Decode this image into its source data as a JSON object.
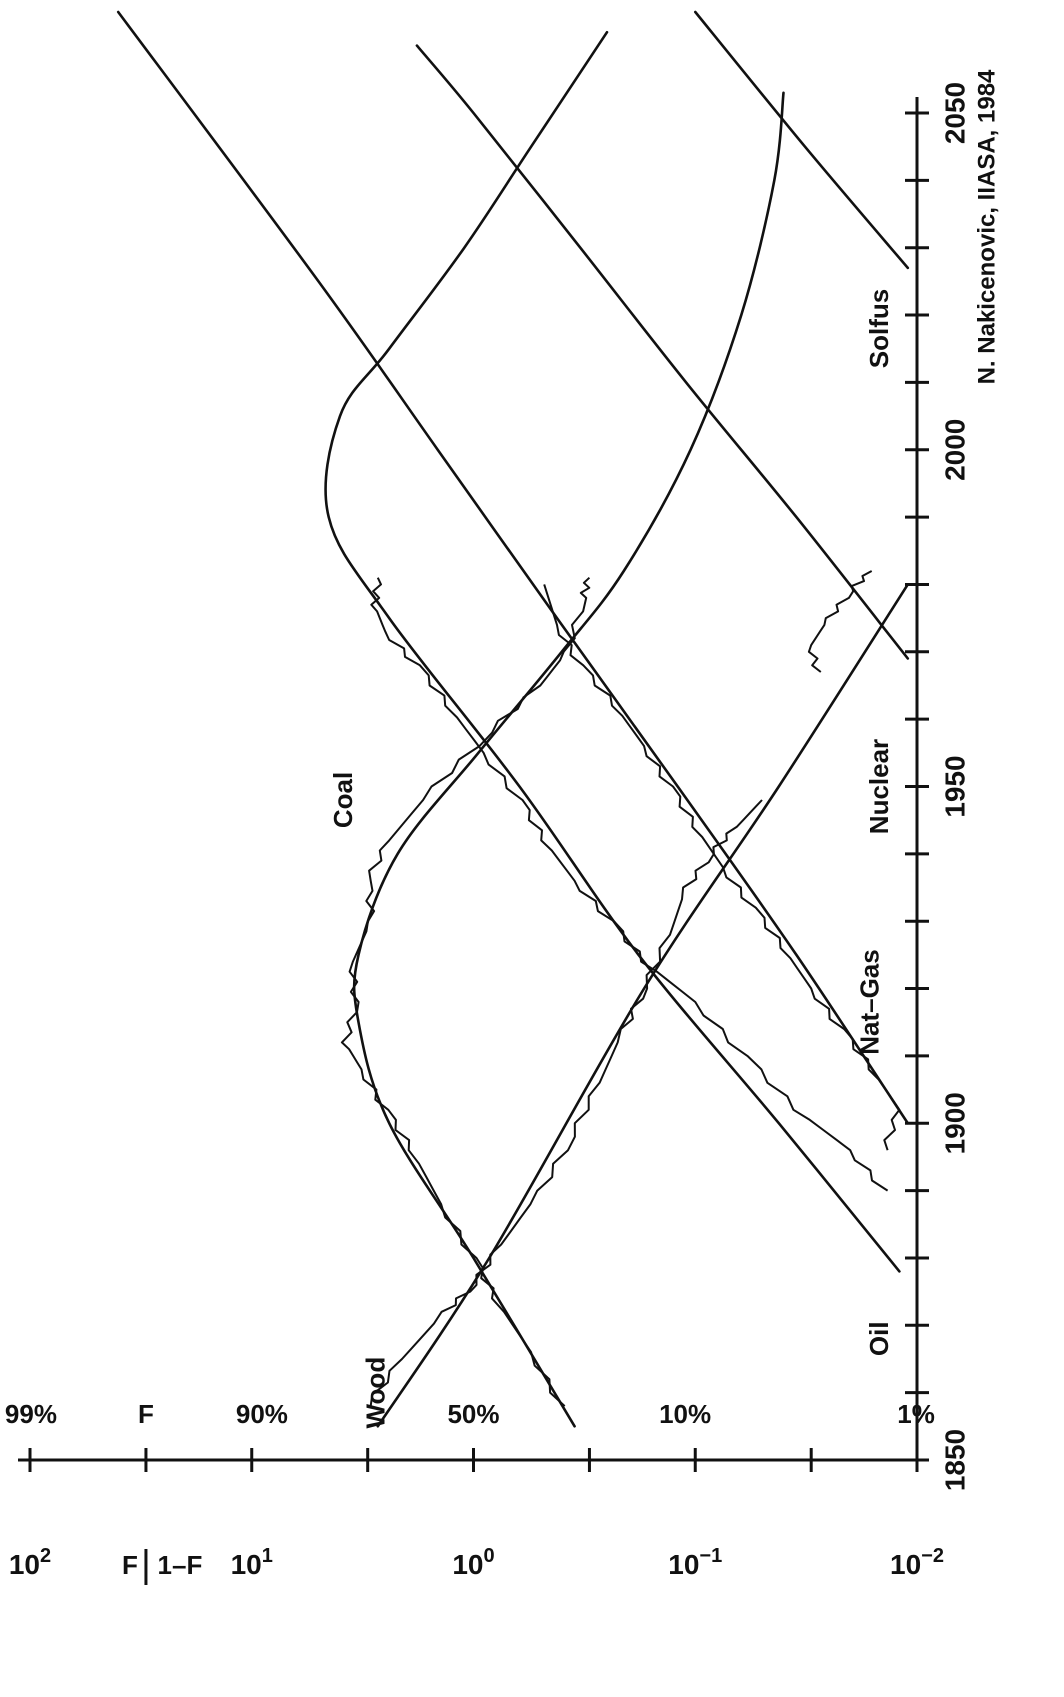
{
  "chart_data": {
    "type": "line",
    "title": "",
    "attribution": "N. Nakicenovic, IIASA, 1984",
    "xlabel": "",
    "ylabel": "F / (1-F)",
    "ylabel_numerator": "F",
    "ylabel_denominator": "1–F",
    "right_axis_label": "F",
    "yscale": "log",
    "xlim": [
      1850,
      2050
    ],
    "ylim": [
      0.01,
      100
    ],
    "x_tick_labels": [
      {
        "x": 1850,
        "label": "1850"
      },
      {
        "x": 1900,
        "label": "1900"
      },
      {
        "x": 1950,
        "label": "1950"
      },
      {
        "x": 2000,
        "label": "2000"
      },
      {
        "x": 2050,
        "label": "2050"
      }
    ],
    "x_minor_ticks": [
      1860,
      1870,
      1880,
      1890,
      1910,
      1920,
      1930,
      1940,
      1960,
      1970,
      1980,
      1990,
      2010,
      2020,
      2030,
      2040
    ],
    "y_tick_labels": [
      {
        "y": 100,
        "base": "10",
        "exp": "2"
      },
      {
        "y": 10,
        "base": "10",
        "exp": "1"
      },
      {
        "y": 1,
        "base": "10",
        "exp": "0"
      },
      {
        "y": 0.1,
        "base": "10",
        "exp": "−1"
      },
      {
        "y": 0.01,
        "base": "10",
        "exp": "−2"
      }
    ],
    "y_minor_ticks": [
      30,
      3,
      0.3,
      0.03
    ],
    "percent_labels": [
      {
        "y": 99,
        "label": "99%"
      },
      {
        "y": 9,
        "label": "90%"
      },
      {
        "y": 1,
        "label": "50%"
      },
      {
        "y": 0.1111,
        "label": "10%"
      },
      {
        "y": 0.0101,
        "label": "1%"
      }
    ],
    "series": [
      {
        "name": "Wood",
        "fitted": [
          [
            1855,
            2.7
          ],
          [
            1880,
            0.85
          ],
          [
            1920,
            0.17
          ],
          [
            1950,
            0.042
          ],
          [
            1980,
            0.011
          ]
        ],
        "observed": [
          [
            1858,
            3.0
          ],
          [
            1865,
            2.1
          ],
          [
            1872,
            1.35
          ],
          [
            1876,
            1.0
          ],
          [
            1882,
            0.75
          ],
          [
            1890,
            0.5
          ],
          [
            1898,
            0.36
          ],
          [
            1906,
            0.27
          ],
          [
            1914,
            0.21
          ],
          [
            1920,
            0.17
          ],
          [
            1928,
            0.13
          ],
          [
            1935,
            0.11
          ],
          [
            1940,
            0.085
          ],
          [
            1944,
            0.065
          ],
          [
            1948,
            0.05
          ]
        ]
      },
      {
        "name": "Coal",
        "fitted": [
          [
            1855,
            0.35
          ],
          [
            1880,
            1.0
          ],
          [
            1900,
            2.4
          ],
          [
            1915,
            3.3
          ],
          [
            1925,
            3.3
          ],
          [
            1940,
            2.2
          ],
          [
            1955,
            0.95
          ],
          [
            1970,
            0.4
          ],
          [
            1982,
            0.21
          ],
          [
            2000,
            0.105
          ],
          [
            2020,
            0.062
          ],
          [
            2040,
            0.044
          ],
          [
            2053,
            0.04
          ]
        ],
        "observed": [
          [
            1858,
            0.4
          ],
          [
            1866,
            0.55
          ],
          [
            1874,
            0.8
          ],
          [
            1880,
            1.0
          ],
          [
            1888,
            1.4
          ],
          [
            1896,
            1.9
          ],
          [
            1902,
            2.5
          ],
          [
            1908,
            3.2
          ],
          [
            1912,
            3.8
          ],
          [
            1918,
            3.4
          ],
          [
            1924,
            3.5
          ],
          [
            1930,
            2.9
          ],
          [
            1936,
            3.0
          ],
          [
            1942,
            2.4
          ],
          [
            1950,
            1.5
          ],
          [
            1958,
            0.85
          ],
          [
            1965,
            0.5
          ],
          [
            1970,
            0.38
          ],
          [
            1978,
            0.32
          ],
          [
            1981,
            0.3
          ]
        ]
      },
      {
        "name": "Oil",
        "fitted": [
          [
            1878,
            0.012
          ],
          [
            1900,
            0.042
          ],
          [
            1925,
            0.18
          ],
          [
            1950,
            0.62
          ],
          [
            1975,
            2.4
          ],
          [
            1990,
            4.5
          ],
          [
            2005,
            4.0
          ],
          [
            2015,
            2.4
          ],
          [
            2030,
            1.1
          ],
          [
            2045,
            0.55
          ],
          [
            2062,
            0.25
          ]
        ],
        "observed": [
          [
            1890,
            0.014
          ],
          [
            1896,
            0.02
          ],
          [
            1902,
            0.035
          ],
          [
            1910,
            0.06
          ],
          [
            1918,
            0.1
          ],
          [
            1924,
            0.17
          ],
          [
            1930,
            0.24
          ],
          [
            1936,
            0.35
          ],
          [
            1942,
            0.48
          ],
          [
            1948,
            0.62
          ],
          [
            1955,
            0.9
          ],
          [
            1962,
            1.3
          ],
          [
            1968,
            1.8
          ],
          [
            1973,
            2.5
          ],
          [
            1977,
            2.8
          ],
          [
            1981,
            2.7
          ]
        ]
      },
      {
        "name": "Nat-Gas",
        "fitted": [
          [
            1900,
            0.011
          ],
          [
            1925,
            0.035
          ],
          [
            1950,
            0.12
          ],
          [
            1975,
            0.42
          ],
          [
            2000,
            1.45
          ],
          [
            2025,
            5.0
          ],
          [
            2065,
            40
          ]
        ],
        "observed": [
          [
            1896,
            0.014
          ],
          [
            1902,
            0.012
          ],
          [
            1908,
            0.016
          ],
          [
            1914,
            0.022
          ],
          [
            1920,
            0.03
          ],
          [
            1926,
            0.04
          ],
          [
            1932,
            0.055
          ],
          [
            1938,
            0.075
          ],
          [
            1944,
            0.1
          ],
          [
            1950,
            0.13
          ],
          [
            1956,
            0.17
          ],
          [
            1962,
            0.23
          ],
          [
            1968,
            0.33
          ],
          [
            1974,
            0.42
          ],
          [
            1980,
            0.48
          ]
        ]
      },
      {
        "name": "Nuclear",
        "fitted": [
          [
            1969,
            0.011
          ],
          [
            1990,
            0.035
          ],
          [
            2010,
            0.11
          ],
          [
            2030,
            0.33
          ],
          [
            2050,
            1.0
          ],
          [
            2060,
            1.8
          ]
        ],
        "observed": [
          [
            1967,
            0.028
          ],
          [
            1971,
            0.03
          ],
          [
            1975,
            0.025
          ],
          [
            1979,
            0.02
          ],
          [
            1982,
            0.016
          ]
        ]
      },
      {
        "name": "Solfus",
        "fitted": [
          [
            2027,
            0.011
          ],
          [
            2045,
            0.032
          ],
          [
            2065,
            0.1
          ]
        ]
      }
    ]
  },
  "labels": {
    "wood": "Wood",
    "coal": "Coal",
    "oil": "Oil",
    "natgas": "Nat–Gas",
    "nuclear": "Nuclear",
    "solfus": "Solfus"
  }
}
